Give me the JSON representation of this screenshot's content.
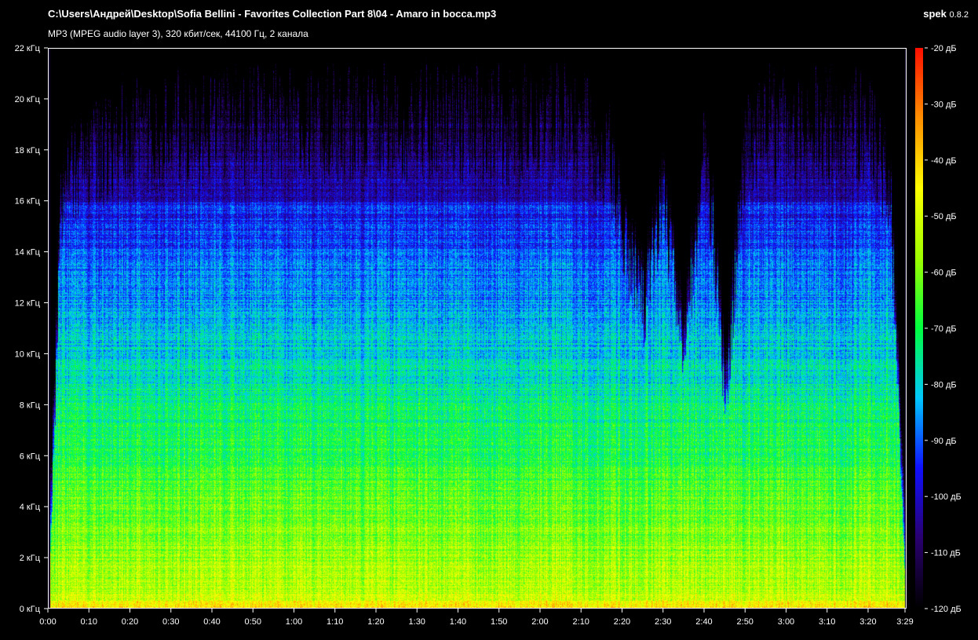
{
  "header": {
    "file_path": "C:\\Users\\Андрей\\Desktop\\Sofia Bellini - Favorites Collection Part 8\\04 - Amaro in bocca.mp3",
    "stream_info": "MP3 (MPEG audio layer 3), 320 кбит/сек, 44100 Гц, 2 канала",
    "app_name": "spek",
    "app_version": "0.8.2"
  },
  "chart_data": {
    "type": "heatmap",
    "xlabel": "",
    "ylabel": "",
    "x_ticks": [
      "0:00",
      "0:10",
      "0:20",
      "0:30",
      "0:40",
      "0:50",
      "1:00",
      "1:10",
      "1:20",
      "1:30",
      "1:40",
      "1:50",
      "2:00",
      "2:10",
      "2:20",
      "2:30",
      "2:40",
      "2:50",
      "3:00",
      "3:10",
      "3:20",
      "3:29"
    ],
    "x_range_seconds": [
      0,
      209
    ],
    "y_ticks": [
      "0 кГц",
      "2 кГц",
      "4 кГц",
      "6 кГц",
      "8 кГц",
      "10 кГц",
      "12 кГц",
      "14 кГц",
      "16 кГц",
      "18 кГц",
      "20 кГц",
      "22 кГц"
    ],
    "y_range_khz": [
      0,
      22
    ],
    "colorbar_ticks": [
      "-20 дБ",
      "-30 дБ",
      "-40 дБ",
      "-50 дБ",
      "-60 дБ",
      "-70 дБ",
      "-80 дБ",
      "-90 дБ",
      "-100 дБ",
      "-110 дБ",
      "-120 дБ"
    ],
    "colorbar_range_db": [
      -120,
      -20
    ],
    "colormap": [
      "#000000",
      "#2a0070",
      "#1010ff",
      "#00c8ff",
      "#00ff40",
      "#a0ff00",
      "#ffff00",
      "#ff9000",
      "#ff1000"
    ],
    "upper_extent_khz": {
      "time_s": [
        0,
        3,
        10,
        20,
        40,
        60,
        80,
        100,
        120,
        130,
        137,
        140,
        145,
        150,
        155,
        160,
        165,
        170,
        175,
        180,
        200,
        205,
        209
      ],
      "khz": [
        0,
        16.5,
        18,
        19,
        19.5,
        19.5,
        19.5,
        19.5,
        19.5,
        19.5,
        18,
        15,
        12,
        16,
        10,
        19,
        8,
        19,
        19.5,
        19.5,
        19.5,
        17,
        0
      ]
    }
  }
}
